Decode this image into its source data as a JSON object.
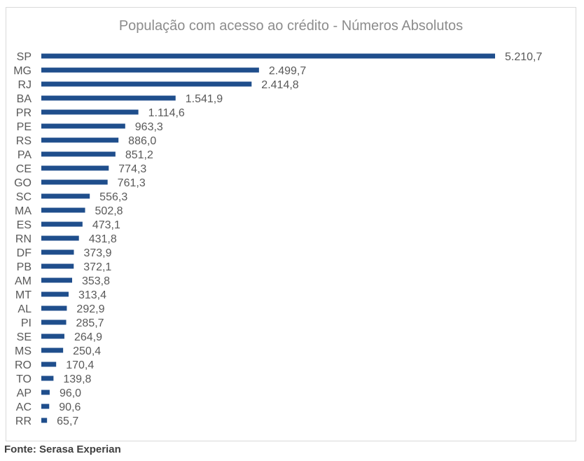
{
  "chart_data": {
    "type": "bar",
    "orientation": "horizontal",
    "title": "População com acesso ao crédito - Números Absolutos",
    "categories": [
      "SP",
      "MG",
      "RJ",
      "BA",
      "PR",
      "PE",
      "RS",
      "PA",
      "CE",
      "GO",
      "SC",
      "MA",
      "ES",
      "RN",
      "DF",
      "PB",
      "AM",
      "MT",
      "AL",
      "PI",
      "SE",
      "MS",
      "RO",
      "TO",
      "AP",
      "AC",
      "RR"
    ],
    "values": [
      5210.7,
      2499.7,
      2414.8,
      1541.9,
      1114.6,
      963.3,
      886.0,
      851.2,
      774.3,
      761.3,
      556.3,
      502.8,
      473.1,
      431.8,
      373.9,
      372.1,
      353.8,
      313.4,
      292.9,
      285.7,
      264.9,
      250.4,
      170.4,
      139.8,
      96.0,
      90.6,
      65.7
    ],
    "data_labels": [
      "5.210,7",
      "2.499,7",
      "2.414,8",
      "1.541,9",
      "1.114,6",
      "963,3",
      "886,0",
      "851,2",
      "774,3",
      "761,3",
      "556,3",
      "502,8",
      "473,1",
      "431,8",
      "373,9",
      "372,1",
      "353,8",
      "313,4",
      "292,9",
      "285,7",
      "264,9",
      "250,4",
      "170,4",
      "139,8",
      "96,0",
      "90,6",
      "65,7"
    ],
    "xlim": [
      0,
      5210.7
    ],
    "grid": false,
    "legend": "none",
    "bar_color": "#1f4e8c",
    "label_color": "#595959"
  },
  "source": "Fonte: Serasa Experian"
}
